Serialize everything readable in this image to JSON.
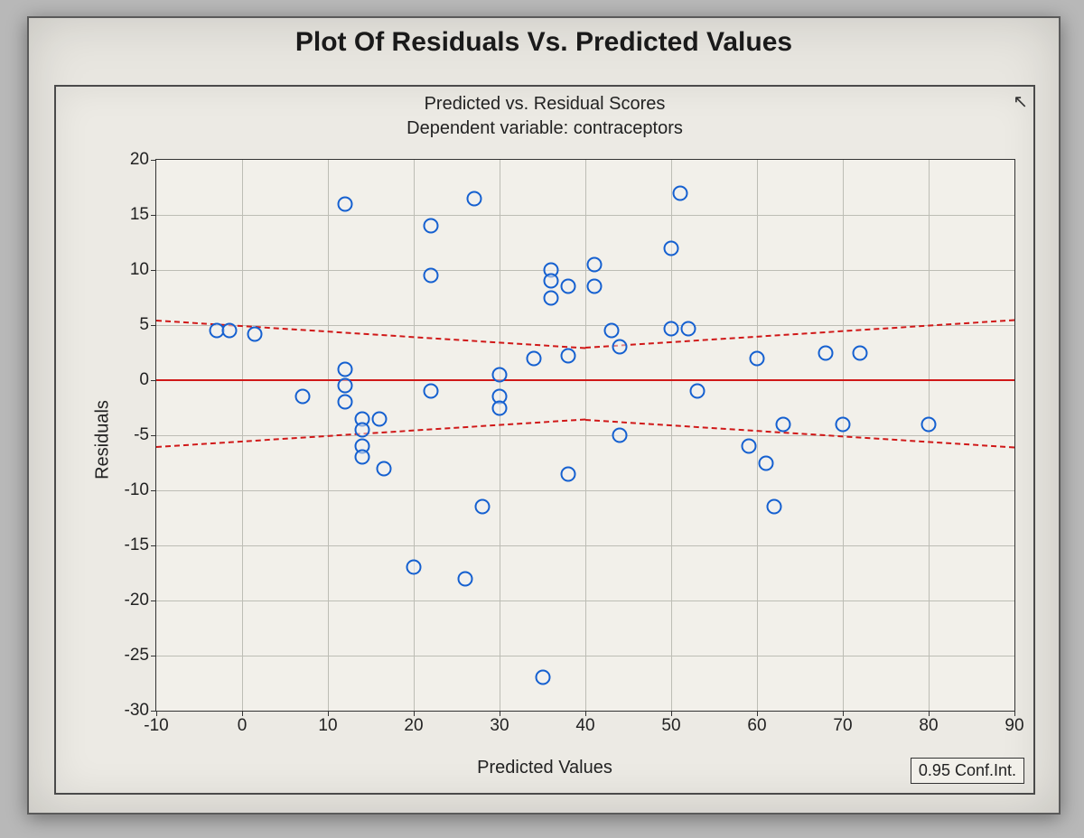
{
  "chart": {
    "type": "scatter",
    "main_title": "Plot Of Residuals Vs. Predicted Values",
    "subtitle_line1": "Predicted vs. Residual Scores",
    "subtitle_line2": "Dependent variable: contraceptors",
    "xlabel": "Predicted Values",
    "ylabel": "Residuals",
    "legend_label": "0.95 Conf.Int.",
    "main_title_fontsize": 30,
    "subtitle_fontsize": 20,
    "label_fontsize": 20,
    "tick_fontsize": 19,
    "background_color": "#e8e6e0",
    "plot_background_color": "#f2f0ea",
    "grid_color": "#bdbdb5",
    "border_color": "#333333",
    "zero_line_color": "#d01818",
    "conf_line_color": "#d01818",
    "marker_border_color": "#1560d0",
    "marker_size": 13,
    "xlim": [
      -10,
      90
    ],
    "ylim": [
      -30,
      20
    ],
    "x_ticks": [
      -10,
      0,
      10,
      20,
      30,
      40,
      50,
      60,
      70,
      80,
      90
    ],
    "y_ticks": [
      -30,
      -25,
      -20,
      -15,
      -10,
      -5,
      0,
      5,
      10,
      15,
      20
    ],
    "conf_upper_left_y": 5.5,
    "conf_upper_right_y": 5.5,
    "conf_upper_mid_y": 3.0,
    "conf_lower_left_y": -6.0,
    "conf_lower_right_y": -6.0,
    "conf_lower_mid_y": -3.5,
    "points": [
      {
        "x": -3,
        "y": 4.5
      },
      {
        "x": -1.5,
        "y": 4.5
      },
      {
        "x": 1.5,
        "y": 4.2
      },
      {
        "x": 7,
        "y": -1.5
      },
      {
        "x": 12,
        "y": 16
      },
      {
        "x": 12,
        "y": 1
      },
      {
        "x": 12,
        "y": -0.5
      },
      {
        "x": 12,
        "y": -2
      },
      {
        "x": 14,
        "y": -3.5
      },
      {
        "x": 14,
        "y": -4.5
      },
      {
        "x": 14,
        "y": -6
      },
      {
        "x": 14,
        "y": -7
      },
      {
        "x": 16,
        "y": -3.5
      },
      {
        "x": 16.5,
        "y": -8
      },
      {
        "x": 20,
        "y": -17
      },
      {
        "x": 22,
        "y": 14
      },
      {
        "x": 22,
        "y": 9.5
      },
      {
        "x": 22,
        "y": -1
      },
      {
        "x": 26,
        "y": -18
      },
      {
        "x": 27,
        "y": 16.5
      },
      {
        "x": 28,
        "y": -11.5
      },
      {
        "x": 30,
        "y": 0.5
      },
      {
        "x": 30,
        "y": -1.5
      },
      {
        "x": 30,
        "y": -2.5
      },
      {
        "x": 34,
        "y": 2
      },
      {
        "x": 35,
        "y": -27
      },
      {
        "x": 36,
        "y": 10
      },
      {
        "x": 36,
        "y": 9
      },
      {
        "x": 36,
        "y": 7.5
      },
      {
        "x": 38,
        "y": 2.2
      },
      {
        "x": 38,
        "y": 8.5
      },
      {
        "x": 38,
        "y": -8.5
      },
      {
        "x": 41,
        "y": 10.5
      },
      {
        "x": 41,
        "y": 8.5
      },
      {
        "x": 43,
        "y": 4.5
      },
      {
        "x": 44,
        "y": 3
      },
      {
        "x": 44,
        "y": -5
      },
      {
        "x": 51,
        "y": 17
      },
      {
        "x": 50,
        "y": 12
      },
      {
        "x": 50,
        "y": 4.7
      },
      {
        "x": 52,
        "y": 4.7
      },
      {
        "x": 53,
        "y": -1
      },
      {
        "x": 59,
        "y": -6
      },
      {
        "x": 60,
        "y": 2
      },
      {
        "x": 61,
        "y": -7.5
      },
      {
        "x": 62,
        "y": -11.5
      },
      {
        "x": 63,
        "y": -4
      },
      {
        "x": 68,
        "y": 2.5
      },
      {
        "x": 70,
        "y": -4
      },
      {
        "x": 72,
        "y": 2.5
      },
      {
        "x": 80,
        "y": -4
      }
    ]
  }
}
